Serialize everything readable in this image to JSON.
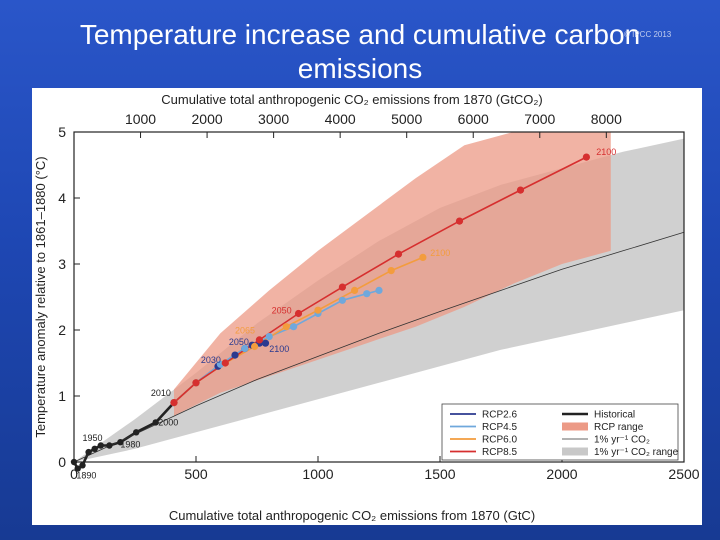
{
  "slide": {
    "title": "Temperature increase and cumulative carbon emissions",
    "credit": "© IPCC 2013"
  },
  "chart_data": {
    "type": "line",
    "title": "",
    "xlabel": "Cumulative total anthropogenic CO₂ emissions from 1870 (GtC)",
    "x2label": "Cumulative total anthropogenic CO₂ emissions from 1870 (GtCO₂)",
    "ylabel": "Temperature anomaly relative to 1861–1880 (°C)",
    "xlim": [
      0,
      2500
    ],
    "ylim": [
      0,
      5
    ],
    "xticks": [
      0,
      500,
      1000,
      1500,
      2000,
      2500
    ],
    "yticks": [
      0,
      1,
      2,
      3,
      4,
      5
    ],
    "x2ticks": [
      1000,
      2000,
      3000,
      4000,
      5000,
      6000,
      7000,
      8000
    ],
    "legend_position": "bottom-right",
    "legend": [
      {
        "name": "RCP2.6",
        "color": "#2b3a8f",
        "kind": "line"
      },
      {
        "name": "RCP4.5",
        "color": "#6fa8dc",
        "kind": "line"
      },
      {
        "name": "RCP6.0",
        "color": "#f39c3d",
        "kind": "line"
      },
      {
        "name": "RCP8.5",
        "color": "#d62f2f",
        "kind": "line"
      },
      {
        "name": "Historical",
        "color": "#222222",
        "kind": "thick"
      },
      {
        "name": "RCP range",
        "color": "#ec9a86",
        "kind": "band"
      },
      {
        "name": "1% yr⁻¹ CO₂",
        "color": "#333333",
        "kind": "thin"
      },
      {
        "name": "1% yr⁻¹ CO₂ range",
        "color": "#c8c8c8",
        "kind": "band"
      }
    ],
    "series": [
      {
        "name": "Historical",
        "color": "#222222",
        "x": [
          0,
          15,
          35,
          60,
          85,
          110,
          145,
          190,
          255,
          335,
          410
        ],
        "y": [
          0.0,
          -0.1,
          -0.05,
          0.15,
          0.2,
          0.25,
          0.25,
          0.3,
          0.45,
          0.6,
          0.9
        ]
      },
      {
        "name": "RCP2.6",
        "color": "#2b3a8f",
        "x": [
          410,
          500,
          590,
          660,
          700,
          730,
          760,
          785
        ],
        "y": [
          0.9,
          1.2,
          1.45,
          1.62,
          1.72,
          1.77,
          1.8,
          1.8
        ]
      },
      {
        "name": "RCP4.5",
        "color": "#6fa8dc",
        "x": [
          410,
          500,
          600,
          700,
          800,
          900,
          1000,
          1100,
          1200,
          1250
        ],
        "y": [
          0.9,
          1.2,
          1.48,
          1.72,
          1.9,
          2.05,
          2.25,
          2.45,
          2.55,
          2.6
        ]
      },
      {
        "name": "RCP6.0",
        "color": "#f39c3d",
        "x": [
          410,
          500,
          620,
          740,
          870,
          1000,
          1150,
          1300,
          1430
        ],
        "y": [
          0.9,
          1.2,
          1.5,
          1.75,
          2.05,
          2.3,
          2.6,
          2.9,
          3.1
        ]
      },
      {
        "name": "RCP8.5",
        "color": "#d62f2f",
        "x": [
          410,
          500,
          620,
          760,
          920,
          1100,
          1330,
          1580,
          1830,
          2100
        ],
        "y": [
          0.9,
          1.2,
          1.5,
          1.85,
          2.25,
          2.65,
          3.15,
          3.65,
          4.12,
          4.62
        ]
      },
      {
        "name": "1% yr⁻¹ CO₂",
        "color": "#333333",
        "x": [
          0,
          250,
          500,
          750,
          1000,
          1250,
          1500,
          1750,
          2000,
          2250,
          2500
        ],
        "y": [
          0.0,
          0.42,
          0.85,
          1.25,
          1.6,
          1.95,
          2.28,
          2.6,
          2.92,
          3.2,
          3.48
        ]
      }
    ],
    "bands": [
      {
        "name": "1% yr⁻¹ CO₂ range",
        "color": "#c8c8c8",
        "x": [
          0,
          250,
          500,
          750,
          1000,
          1250,
          1500,
          1750,
          2000,
          2250,
          2500
        ],
        "upper": [
          0.0,
          0.65,
          1.35,
          2.1,
          2.75,
          3.35,
          3.85,
          4.2,
          4.45,
          4.7,
          4.9
        ],
        "lower": [
          0.0,
          0.2,
          0.45,
          0.7,
          0.95,
          1.2,
          1.45,
          1.7,
          1.9,
          2.1,
          2.3
        ]
      },
      {
        "name": "RCP range",
        "color": "#ec9a86",
        "x": [
          410,
          600,
          800,
          1000,
          1200,
          1400,
          1600,
          1800,
          2000,
          2200
        ],
        "upper": [
          1.1,
          1.95,
          2.6,
          3.2,
          3.75,
          4.3,
          4.8,
          5.0,
          5.0,
          5.0
        ],
        "lower": [
          0.7,
          1.05,
          1.3,
          1.55,
          1.8,
          2.05,
          2.35,
          2.7,
          3.0,
          3.2
        ]
      }
    ],
    "annotations": [
      {
        "text": "1890",
        "x": 10,
        "y": -0.25,
        "color": "#222222"
      },
      {
        "text": "1950",
        "x": 35,
        "y": 0.32,
        "color": "#222222"
      },
      {
        "text": "1980",
        "x": 190,
        "y": 0.22,
        "color": "#222222"
      },
      {
        "text": "2000",
        "x": 345,
        "y": 0.55,
        "color": "#222222"
      },
      {
        "text": "2010",
        "x": 315,
        "y": 1.0,
        "color": "#222222"
      },
      {
        "text": "2030",
        "x": 520,
        "y": 1.5,
        "color": "#2b3a8f"
      },
      {
        "text": "2050",
        "x": 635,
        "y": 1.77,
        "color": "#2b3a8f"
      },
      {
        "text": "2065",
        "x": 660,
        "y": 1.95,
        "color": "#f39c3d"
      },
      {
        "text": "2100",
        "x": 800,
        "y": 1.67,
        "color": "#2b3a8f"
      },
      {
        "text": "2050",
        "x": 810,
        "y": 2.25,
        "color": "#d62f2f"
      },
      {
        "text": "2100",
        "x": 1460,
        "y": 3.12,
        "color": "#f39c3d"
      },
      {
        "text": "2100",
        "x": 2140,
        "y": 4.65,
        "color": "#d62f2f"
      }
    ]
  }
}
